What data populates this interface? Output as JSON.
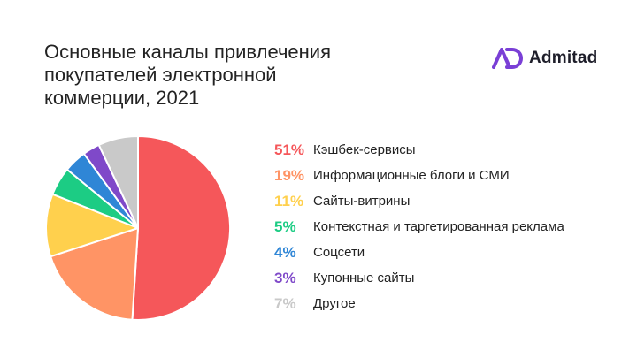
{
  "header": {
    "title": "Основные каналы привлечения\nпокупателей электронной\nкоммерции, 2021"
  },
  "brand": {
    "name": "Admitad",
    "mark_color": "#7a3fd6"
  },
  "chart_data": {
    "type": "pie",
    "title": "Основные каналы привлечения покупателей электронной коммерции, 2021",
    "legend_position": "right",
    "slices": [
      {
        "label": "Кэшбек-сервисы",
        "value": 51,
        "pct_label": "51%",
        "color": "#f5575a"
      },
      {
        "label": "Информационные блоги и СМИ",
        "value": 19,
        "pct_label": "19%",
        "color": "#ff9465"
      },
      {
        "label": "Сайты-витрины",
        "value": 11,
        "pct_label": "11%",
        "color": "#ffd04d"
      },
      {
        "label": "Контекстная и таргетированная реклама",
        "value": 5,
        "pct_label": "5%",
        "color": "#1ccc84"
      },
      {
        "label": "Соцсети",
        "value": 4,
        "pct_label": "4%",
        "color": "#2f86d6"
      },
      {
        "label": "Купонные сайты",
        "value": 3,
        "pct_label": "3%",
        "color": "#7f49c9"
      },
      {
        "label": "Другое",
        "value": 7,
        "pct_label": "7%",
        "color": "#c9c9c9"
      }
    ]
  }
}
